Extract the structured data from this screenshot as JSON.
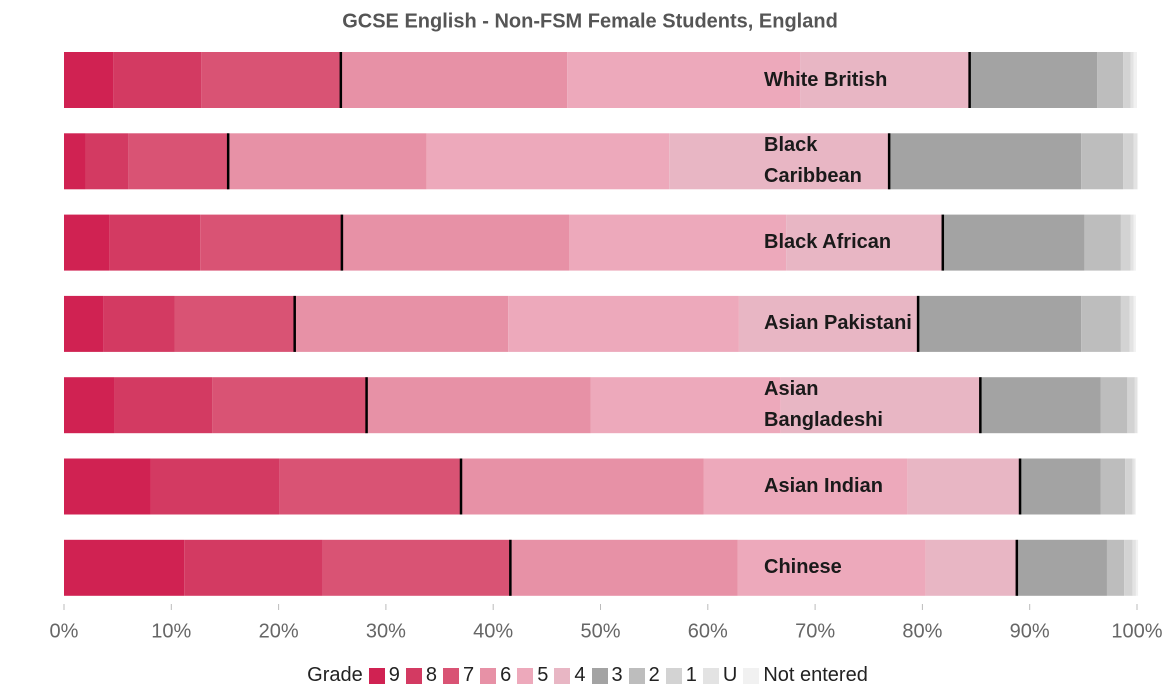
{
  "chart_data": {
    "type": "bar",
    "orientation": "horizontal",
    "stacked": true,
    "title": "GCSE English - Non-FSM Female Students, England",
    "categories": [
      "White British",
      "Black Caribbean",
      "Black African",
      "Asian Pakistani",
      "Asian Bangladeshi",
      "Asian Indian",
      "Chinese"
    ],
    "legend_title": "Grade",
    "series": [
      {
        "name": "9",
        "color": "#d02252",
        "values": [
          4.6,
          2.0,
          4.2,
          3.7,
          4.7,
          8.1,
          11.2
        ]
      },
      {
        "name": "8",
        "color": "#d33a62",
        "values": [
          8.2,
          4.0,
          8.5,
          6.6,
          9.1,
          12.0,
          12.9
        ]
      },
      {
        "name": "7",
        "color": "#d95374",
        "values": [
          13.0,
          9.3,
          13.2,
          11.2,
          14.4,
          16.9,
          17.5
        ]
      },
      {
        "name": "6",
        "color": "#e791a6",
        "values": [
          21.1,
          18.5,
          21.2,
          19.9,
          20.9,
          22.6,
          21.2
        ]
      },
      {
        "name": "5",
        "color": "#eda9bb",
        "values": [
          21.7,
          22.6,
          20.2,
          21.5,
          17.7,
          19.0,
          17.5
        ]
      },
      {
        "name": "4",
        "color": "#e8b6c4",
        "values": [
          15.8,
          20.5,
          14.6,
          16.7,
          18.6,
          10.5,
          8.5
        ]
      },
      {
        "name": "3",
        "color": "#a3a3a3",
        "values": [
          11.9,
          17.9,
          13.2,
          15.2,
          11.2,
          7.5,
          8.4
        ]
      },
      {
        "name": "2",
        "color": "#bdbdbd",
        "values": [
          2.4,
          3.9,
          3.4,
          3.7,
          2.5,
          2.3,
          1.6
        ]
      },
      {
        "name": "1",
        "color": "#d3d3d3",
        "values": [
          0.7,
          1.0,
          0.9,
          0.8,
          0.7,
          0.7,
          0.8
        ]
      },
      {
        "name": "U",
        "color": "#e3e3e3",
        "values": [
          0.3,
          0.3,
          0.3,
          0.4,
          0.2,
          0.2,
          0.3
        ]
      },
      {
        "name": "Not entered",
        "color": "#f1f1f1",
        "values": [
          0.3,
          0.1,
          0.2,
          0.2,
          0.1,
          0.1,
          0.2
        ]
      }
    ],
    "xlim": [
      0,
      100
    ],
    "xticks": [
      {
        "value": 0,
        "label": "0%"
      },
      {
        "value": 10,
        "label": "10%"
      },
      {
        "value": 20,
        "label": "20%"
      },
      {
        "value": 30,
        "label": "30%"
      },
      {
        "value": 40,
        "label": "40%"
      },
      {
        "value": 50,
        "label": "50%"
      },
      {
        "value": 60,
        "label": "60%"
      },
      {
        "value": 70,
        "label": "70%"
      },
      {
        "value": 80,
        "label": "80%"
      },
      {
        "value": 90,
        "label": "90%"
      },
      {
        "value": 100,
        "label": "100%"
      }
    ]
  }
}
